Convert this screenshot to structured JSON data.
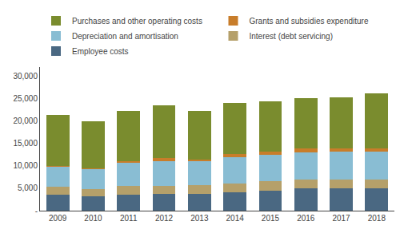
{
  "chart_data": {
    "type": "bar",
    "stacked": true,
    "categories": [
      "2009",
      "2010",
      "2011",
      "2012",
      "2013",
      "2014",
      "2015",
      "2016",
      "2017",
      "2018"
    ],
    "series": [
      {
        "name": "Employee costs",
        "color": "#4a6882",
        "values": [
          3500,
          3200,
          3600,
          3700,
          3800,
          4100,
          4500,
          4900,
          4900,
          5000
        ]
      },
      {
        "name": "Interest (debt servicing)",
        "color": "#b5a06a",
        "values": [
          1800,
          1600,
          1900,
          1900,
          1900,
          2000,
          2000,
          2000,
          2000,
          2000
        ]
      },
      {
        "name": "Depreciation and amortisation",
        "color": "#89bdd3",
        "values": [
          4500,
          4500,
          5200,
          5500,
          5400,
          5800,
          5900,
          6100,
          6200,
          6200
        ]
      },
      {
        "name": "Grants and subsidies expenditure",
        "color": "#c87d2a",
        "values": [
          200,
          200,
          300,
          600,
          300,
          700,
          700,
          900,
          700,
          700
        ]
      },
      {
        "name": "Purchases and other operating costs",
        "color": "#7a8c2e",
        "values": [
          11300,
          10400,
          11200,
          11700,
          10900,
          11400,
          11200,
          11200,
          11400,
          12300
        ]
      }
    ],
    "ylim": [
      0,
      32000
    ],
    "yticks": [
      {
        "value": 0,
        "label": "-"
      },
      {
        "value": 5000,
        "label": "5,000"
      },
      {
        "value": 10000,
        "label": "10,000"
      },
      {
        "value": 15000,
        "label": "15,000"
      },
      {
        "value": 20000,
        "label": "20,000"
      },
      {
        "value": 25000,
        "label": "25,000"
      },
      {
        "value": 30000,
        "label": "30,000"
      }
    ],
    "grid": false,
    "legend": "top"
  }
}
